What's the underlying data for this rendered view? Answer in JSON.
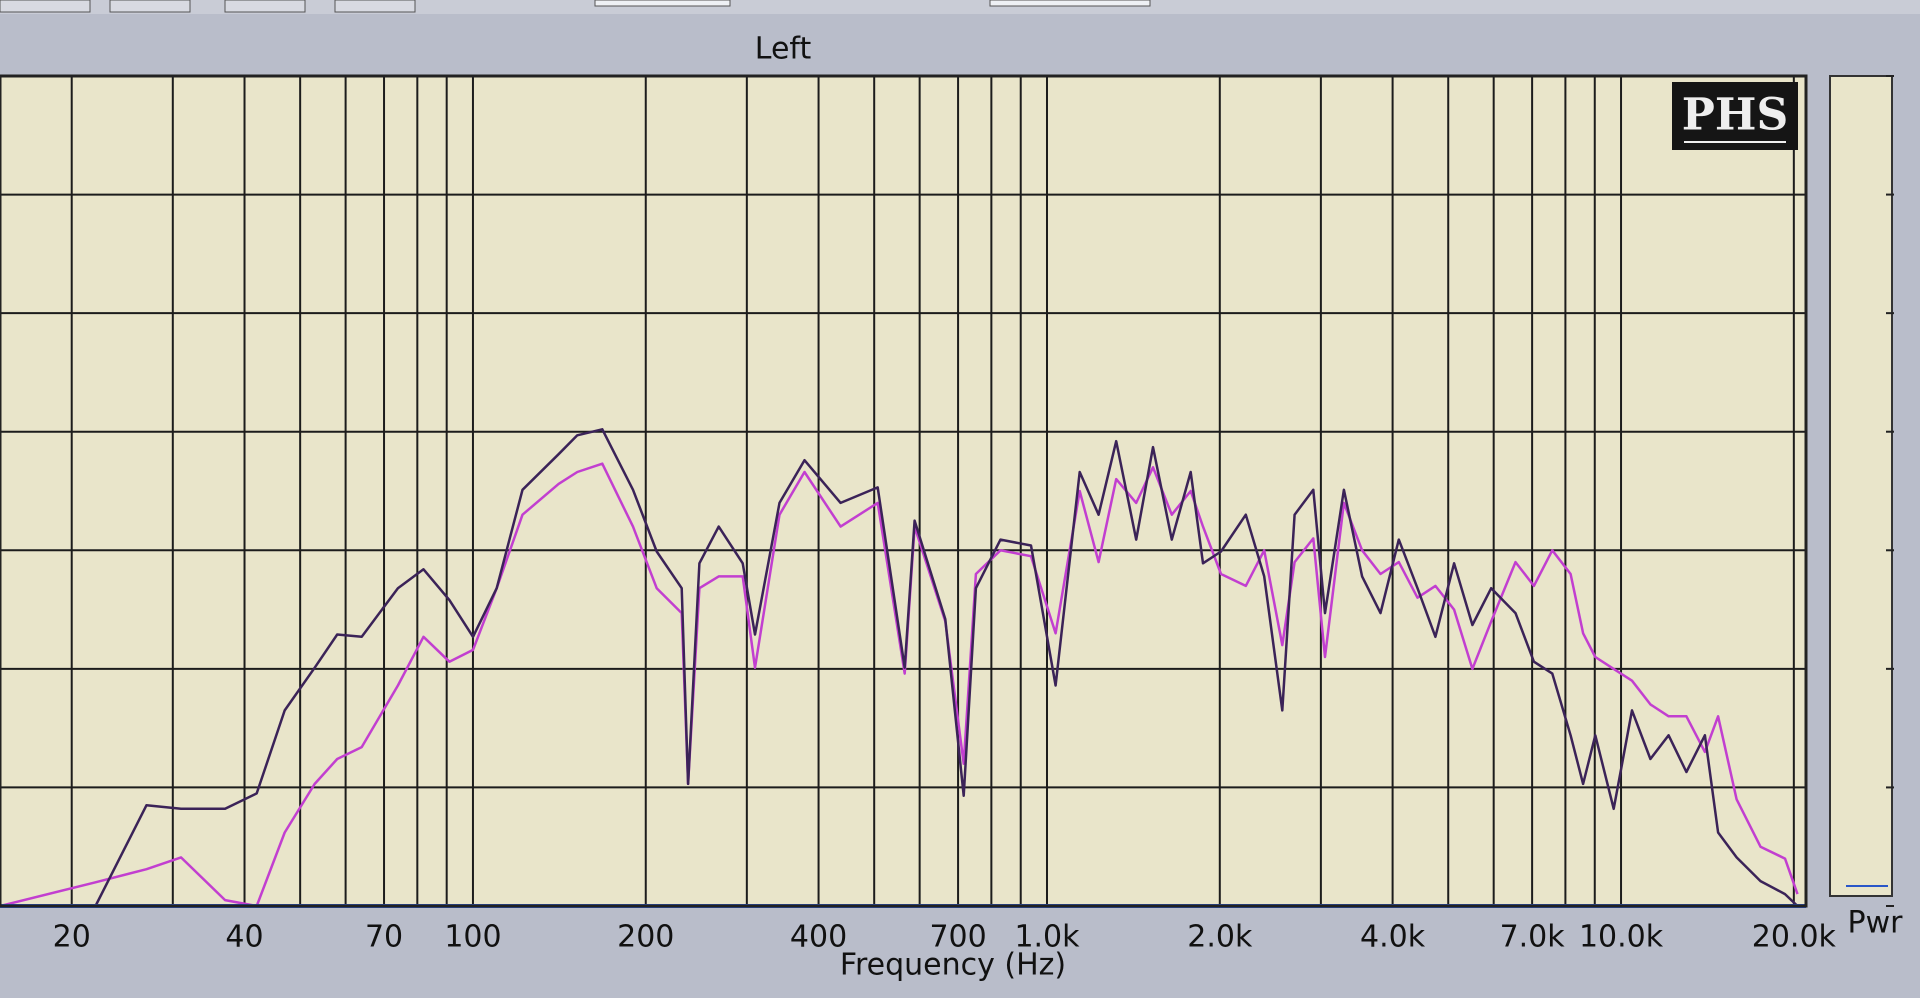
{
  "chart_data": {
    "type": "line",
    "title": "Left",
    "x_label": "Frequency (Hz)",
    "logo": "PHS",
    "meter_label": "Pwr",
    "xscale": "log",
    "grid": true,
    "xlim": [
      15,
      21000
    ],
    "ylim": [
      0,
      7
    ],
    "yticks": [
      0,
      1,
      2,
      3,
      4,
      5,
      6,
      7
    ],
    "xticks": [
      20,
      40,
      70,
      100,
      200,
      400,
      700,
      {
        "value": 1000,
        "label": "1.0k"
      },
      {
        "value": 2000,
        "label": "2.0k"
      },
      {
        "value": 4000,
        "label": "4.0k"
      },
      {
        "value": 7000,
        "label": "7.0k"
      },
      {
        "value": 10000,
        "label": "10.0k"
      },
      {
        "value": 20000,
        "label": "20.0k"
      }
    ],
    "minor_xticks": [
      30,
      50,
      60,
      80,
      90,
      300,
      500,
      600,
      800,
      900,
      3000,
      5000,
      6000,
      8000,
      9000
    ],
    "x": [
      15,
      22,
      27,
      31,
      37,
      42,
      47,
      53,
      58,
      64,
      74,
      82,
      91,
      100,
      110,
      122,
      141,
      152,
      168,
      190,
      209,
      231,
      237,
      248,
      268,
      295,
      310,
      342,
      378,
      437,
      507,
      565,
      588,
      665,
      716,
      752,
      830,
      938,
      1035,
      1140,
      1230,
      1320,
      1430,
      1530,
      1650,
      1780,
      1870,
      2010,
      2220,
      2390,
      2570,
      2700,
      2910,
      3050,
      3290,
      3540,
      3810,
      4100,
      4420,
      4750,
      5120,
      5510,
      5940,
      6550,
      7050,
      7590,
      8170,
      8590,
      9020,
      9710,
      10450,
      11250,
      12100,
      13000,
      14000,
      14760,
      15900,
      17500,
      19300,
      20300
    ],
    "series": [
      {
        "color": "#3b2358",
        "values": [
          0,
          0,
          0.85,
          0.82,
          0.82,
          0.95,
          1.65,
          2.01,
          2.29,
          2.27,
          2.68,
          2.84,
          2.58,
          2.27,
          2.68,
          3.51,
          3.81,
          3.97,
          4.02,
          3.51,
          2.99,
          2.68,
          1.03,
          2.89,
          3.2,
          2.89,
          2.29,
          3.4,
          3.76,
          3.4,
          3.53,
          2.01,
          3.25,
          2.42,
          0.93,
          2.68,
          3.09,
          3.04,
          1.86,
          3.66,
          3.3,
          3.92,
          3.09,
          3.87,
          3.09,
          3.66,
          2.89,
          2.99,
          3.3,
          2.78,
          1.65,
          3.3,
          3.51,
          2.47,
          3.51,
          2.78,
          2.47,
          3.09,
          2.68,
          2.27,
          2.89,
          2.37,
          2.68,
          2.47,
          2.06,
          1.96,
          1.44,
          1.03,
          1.44,
          0.82,
          1.65,
          1.24,
          1.44,
          1.13,
          1.44,
          0.62,
          0.41,
          0.21,
          0.1,
          0
        ]
      },
      {
        "color": "#c23fd0",
        "values": [
          0,
          0.2,
          0.31,
          0.41,
          0.05,
          0,
          0.62,
          1.03,
          1.24,
          1.34,
          1.86,
          2.27,
          2.06,
          2.16,
          2.68,
          3.3,
          3.56,
          3.66,
          3.73,
          3.2,
          2.68,
          2.47,
          1.03,
          2.68,
          2.78,
          2.78,
          2.01,
          3.3,
          3.66,
          3.2,
          3.4,
          1.96,
          3.2,
          2.4,
          1.2,
          2.8,
          3.0,
          2.95,
          2.3,
          3.5,
          2.9,
          3.6,
          3.4,
          3.7,
          3.3,
          3.5,
          3.2,
          2.8,
          2.7,
          3.0,
          2.2,
          2.9,
          3.1,
          2.1,
          3.4,
          3.0,
          2.8,
          2.9,
          2.6,
          2.7,
          2.5,
          2.0,
          2.4,
          2.9,
          2.7,
          3.0,
          2.8,
          2.3,
          2.1,
          2.0,
          1.9,
          1.7,
          1.6,
          1.6,
          1.3,
          1.6,
          0.9,
          0.5,
          0.4,
          0.1
        ]
      }
    ]
  }
}
